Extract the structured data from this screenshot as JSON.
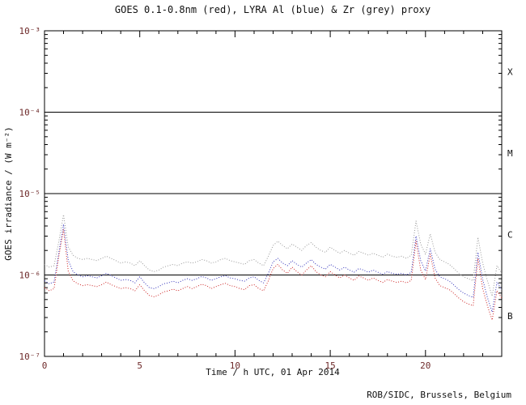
{
  "colors": {
    "background": "#ffffff",
    "axis": "#000000",
    "tick_label": "#6e2a2a",
    "text": "#111111",
    "goes_red": "#cc2222",
    "lyra_al_blue": "#3333bb",
    "lyra_zr_grey": "#999999"
  },
  "footer": {
    "credit": "ROB/SIDC, Brussels, Belgium"
  },
  "chart_data": {
    "type": "line",
    "title": "GOES 0.1-0.8nm (red), LYRA Al (blue) & Zr (grey) proxy",
    "xlabel": "Time / h UTC, 01 Apr 2014",
    "ylabel": "GOES irradiance / (W m⁻²)",
    "xlim": [
      0,
      24
    ],
    "ylim": [
      1e-07,
      0.001
    ],
    "yscale": "log",
    "grid": false,
    "legend": "in-title",
    "x_major_ticks": [
      0,
      5,
      10,
      15,
      20
    ],
    "x_minor_step": 1,
    "y_tick_exponents": [
      -3,
      -4,
      -5,
      -6,
      -7
    ],
    "y_tick_labels": [
      "10⁻³",
      "10⁻⁴",
      "10⁻⁵",
      "10⁻⁶",
      "10⁻⁷"
    ],
    "threshold_lines": [
      0.0001,
      1e-05,
      1e-06
    ],
    "flare_classes": [
      "X",
      "M",
      "C",
      "B"
    ],
    "x_start": 0,
    "x_step": 0.25,
    "value_scale": 1e-06,
    "series": [
      {
        "key": "goes-xrs",
        "name": "GOES 0.1-0.8nm",
        "color": "#cc2222",
        "values": [
          0.7,
          0.64,
          0.68,
          1.7,
          3.6,
          1.1,
          0.85,
          0.78,
          0.74,
          0.76,
          0.74,
          0.72,
          0.76,
          0.82,
          0.76,
          0.72,
          0.68,
          0.7,
          0.68,
          0.64,
          0.76,
          0.64,
          0.56,
          0.54,
          0.57,
          0.62,
          0.64,
          0.67,
          0.64,
          0.68,
          0.72,
          0.68,
          0.72,
          0.77,
          0.74,
          0.68,
          0.72,
          0.76,
          0.79,
          0.74,
          0.72,
          0.68,
          0.66,
          0.74,
          0.76,
          0.68,
          0.64,
          0.85,
          1.2,
          1.35,
          1.15,
          1.05,
          1.25,
          1.1,
          1.0,
          1.15,
          1.3,
          1.1,
          1.0,
          0.95,
          1.1,
          1.0,
          0.92,
          1.0,
          0.92,
          0.86,
          0.97,
          0.92,
          0.86,
          0.92,
          0.86,
          0.81,
          0.88,
          0.84,
          0.81,
          0.84,
          0.8,
          0.86,
          2.6,
          1.15,
          0.88,
          1.8,
          0.92,
          0.74,
          0.7,
          0.66,
          0.59,
          0.52,
          0.47,
          0.44,
          0.42,
          1.6,
          0.68,
          0.42,
          0.28,
          0.64,
          0.52
        ]
      },
      {
        "key": "lyra-al-proxy",
        "name": "LYRA Al proxy",
        "color": "#3333bb",
        "values": [
          0.85,
          0.78,
          0.82,
          1.9,
          4.2,
          1.5,
          1.1,
          1.0,
          0.95,
          0.98,
          0.95,
          0.92,
          0.98,
          1.05,
          0.98,
          0.92,
          0.86,
          0.88,
          0.86,
          0.8,
          0.95,
          0.8,
          0.7,
          0.68,
          0.72,
          0.78,
          0.8,
          0.84,
          0.8,
          0.86,
          0.9,
          0.86,
          0.9,
          0.96,
          0.92,
          0.86,
          0.9,
          0.95,
          0.98,
          0.92,
          0.9,
          0.86,
          0.84,
          0.92,
          0.95,
          0.86,
          0.8,
          1.05,
          1.45,
          1.6,
          1.4,
          1.3,
          1.5,
          1.35,
          1.25,
          1.4,
          1.55,
          1.35,
          1.25,
          1.18,
          1.35,
          1.25,
          1.15,
          1.25,
          1.15,
          1.08,
          1.2,
          1.15,
          1.08,
          1.15,
          1.08,
          1.02,
          1.1,
          1.05,
          1.02,
          1.05,
          1.0,
          1.08,
          3.0,
          1.5,
          1.12,
          2.1,
          1.18,
          0.95,
          0.9,
          0.84,
          0.75,
          0.66,
          0.6,
          0.56,
          0.53,
          1.9,
          0.88,
          0.53,
          0.35,
          0.82,
          0.66
        ]
      },
      {
        "key": "lyra-zr-proxy",
        "name": "LYRA Zr proxy",
        "color": "#999999",
        "values": [
          1.35,
          1.25,
          1.3,
          2.6,
          5.5,
          2.2,
          1.75,
          1.6,
          1.55,
          1.6,
          1.55,
          1.5,
          1.6,
          1.7,
          1.6,
          1.5,
          1.4,
          1.45,
          1.4,
          1.3,
          1.5,
          1.3,
          1.15,
          1.1,
          1.15,
          1.25,
          1.3,
          1.35,
          1.3,
          1.4,
          1.45,
          1.4,
          1.45,
          1.55,
          1.5,
          1.4,
          1.45,
          1.55,
          1.6,
          1.5,
          1.45,
          1.4,
          1.35,
          1.5,
          1.55,
          1.4,
          1.3,
          1.7,
          2.3,
          2.6,
          2.3,
          2.1,
          2.4,
          2.2,
          2.0,
          2.3,
          2.5,
          2.2,
          2.0,
          1.9,
          2.2,
          2.0,
          1.85,
          2.0,
          1.85,
          1.75,
          1.95,
          1.85,
          1.75,
          1.85,
          1.75,
          1.65,
          1.8,
          1.7,
          1.65,
          1.7,
          1.6,
          1.75,
          4.6,
          2.4,
          1.8,
          3.2,
          1.9,
          1.55,
          1.45,
          1.35,
          1.2,
          1.05,
          0.95,
          0.9,
          0.85,
          2.9,
          1.4,
          0.85,
          0.55,
          1.3,
          1.05
        ]
      }
    ]
  }
}
